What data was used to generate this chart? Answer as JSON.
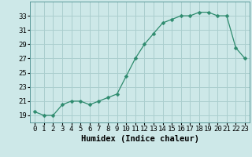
{
  "x": [
    0,
    1,
    2,
    3,
    4,
    5,
    6,
    7,
    8,
    9,
    10,
    11,
    12,
    13,
    14,
    15,
    16,
    17,
    18,
    19,
    20,
    21,
    22,
    23
  ],
  "y": [
    19.5,
    19.0,
    19.0,
    20.5,
    21.0,
    21.0,
    20.5,
    21.0,
    21.5,
    22.0,
    24.5,
    27.0,
    29.0,
    30.5,
    32.0,
    32.5,
    33.0,
    33.0,
    33.5,
    33.5,
    33.0,
    33.0,
    28.5,
    27.0
  ],
  "line_color": "#2e8b6e",
  "marker": "D",
  "marker_size": 2.5,
  "bg_color": "#cde8e8",
  "grid_color": "#aacece",
  "xlabel": "Humidex (Indice chaleur)",
  "xlim": [
    -0.5,
    23.5
  ],
  "ylim": [
    18,
    35
  ],
  "yticks": [
    19,
    21,
    23,
    25,
    27,
    29,
    31,
    33
  ],
  "xtick_labels": [
    "0",
    "1",
    "2",
    "3",
    "4",
    "5",
    "6",
    "7",
    "8",
    "9",
    "10",
    "11",
    "12",
    "13",
    "14",
    "15",
    "16",
    "17",
    "18",
    "19",
    "20",
    "21",
    "22",
    "23"
  ],
  "tick_fontsize": 6.5,
  "label_fontsize": 7.5
}
